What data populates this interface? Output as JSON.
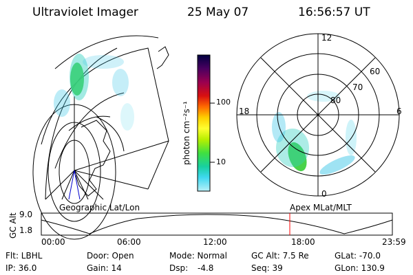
{
  "header": {
    "instrument": "Ultraviolet Imager",
    "date": "25 May 07",
    "time": "16:56:57 UT"
  },
  "colorbar": {
    "unit_label": "photon cm⁻²s⁻¹",
    "ticks": [
      "100",
      "10"
    ],
    "colors": [
      "#000040",
      "#4a0060",
      "#9a0050",
      "#d81010",
      "#ff6a00",
      "#ffd000",
      "#ffff30",
      "#b8f000",
      "#40e040",
      "#18d0a0",
      "#40d8f0",
      "#b8f0f8"
    ]
  },
  "geo_map": {
    "label": "Geographic Lat/Lon"
  },
  "polar": {
    "label": "Apex MLat/MLT",
    "mlt_labels": {
      "top": "12",
      "bottom": "0",
      "left": "18",
      "right": "6"
    },
    "lat_labels": [
      "60",
      "70",
      "80"
    ]
  },
  "timeline": {
    "ylabel": "GC Alt",
    "y_ticks": [
      "9.0",
      "1.8"
    ],
    "x_ticks": [
      "00:00",
      "06:00",
      "12:00",
      "18:00",
      "23:59"
    ],
    "marker_color": "#ff0000"
  },
  "info": {
    "flt": "Flt: LBHL",
    "door": "Door: Open",
    "mode": "Mode: Normal",
    "gcalt": "GC Alt: 7.5 Re",
    "glat": "GLat: -70.0",
    "ip": "IP: 36.0",
    "gain": "Gain: 14",
    "dsp_label": "Dsp:",
    "dsp_value": "-4.8",
    "seq": "Seq: 39",
    "glon": "GLon: 130.9"
  }
}
